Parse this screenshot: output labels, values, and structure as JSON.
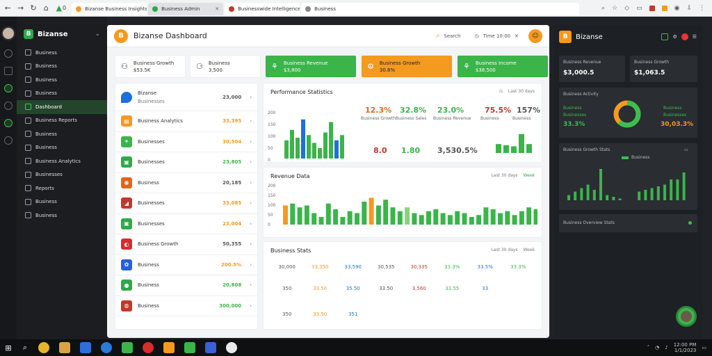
{
  "browser": {
    "tabs": [
      {
        "label": "Bizanse Business Insights",
        "dot": "#f39a1f",
        "active": false
      },
      {
        "label": "Business Admin",
        "dot": "#2fa84a",
        "active": true
      },
      {
        "label": "Businesswide Intelligence",
        "dot": "#c0392b",
        "active": false
      },
      {
        "label": "Business",
        "dot": "#888888",
        "active": false
      }
    ],
    "tab_indicator": "0"
  },
  "sidebar": {
    "brand": "Bizanse",
    "items": [
      {
        "label": "Business"
      },
      {
        "label": "Business"
      },
      {
        "label": "Business"
      },
      {
        "label": "Business"
      },
      {
        "label": "Dashboard"
      },
      {
        "label": "Business Reports"
      },
      {
        "label": "Business"
      },
      {
        "label": "Business"
      },
      {
        "label": "Business Analytics"
      },
      {
        "label": "Businesses"
      },
      {
        "label": "Reports"
      },
      {
        "label": "Business"
      },
      {
        "label": "Business"
      }
    ],
    "active_index": 4
  },
  "header": {
    "title": "Bizanse Dashboard",
    "search_label": "Search",
    "time_label": "Time 10:00"
  },
  "kpis": [
    {
      "l1": "Business Growth",
      "l2": "$53.5K",
      "style": "plain"
    },
    {
      "l1": "Business",
      "l2": "3,500",
      "style": "plain"
    },
    {
      "l1": "Business Revenue",
      "l2": "$3,800",
      "style": "green"
    },
    {
      "l1": "Business Growth",
      "l2": "30.8%",
      "style": "orange"
    },
    {
      "l1": "Business Income",
      "l2": "$38,500",
      "style": "green"
    }
  ],
  "list": {
    "first": {
      "name": "Bizanse",
      "sub": "Businesses",
      "value": "23,000"
    },
    "rows": [
      {
        "name": "Business Analytics",
        "value": "33,395",
        "color": "#f39a1f",
        "icon_bg": "#f39a1f"
      },
      {
        "name": "Businesses",
        "value": "30,504",
        "color": "#f39a1f",
        "icon_bg": "#3bb44a"
      },
      {
        "name": "Businesses",
        "value": "23,805",
        "color": "#3bb44a",
        "icon_bg": "#2fa84a"
      },
      {
        "name": "Business",
        "value": "20,185",
        "color": "#555555",
        "icon_bg": "#e0641c"
      },
      {
        "name": "Businesses",
        "value": "33,085",
        "color": "#f39a1f",
        "icon_bg": "#c0392b"
      },
      {
        "name": "Businesses",
        "value": "23,004",
        "color": "#f39a1f",
        "icon_bg": "#2fa84a"
      },
      {
        "name": "Business Growth",
        "value": "50,355",
        "color": "#555555",
        "icon_bg": "#d92c2c"
      },
      {
        "name": "Business",
        "value": "200.5%",
        "color": "#f39a1f",
        "icon_bg": "#2b5fd9"
      },
      {
        "name": "Business",
        "value": "20,808",
        "color": "#3bb44a",
        "icon_bg": "#2fa84a"
      },
      {
        "name": "Business",
        "value": "300,000",
        "color": "#3bb44a",
        "icon_bg": "#c0392b"
      }
    ]
  },
  "perf": {
    "title": "Performance Statistics",
    "tools": "Last 30 days",
    "metrics": [
      {
        "value": "12.3%",
        "label": "Business Growth",
        "color": "#e06a1c"
      },
      {
        "value": "32.8%",
        "label": "Business Sales",
        "color": "#3bb44a"
      },
      {
        "value": "23.0%",
        "label": "Business Revenue",
        "color": "#3bb44a"
      },
      {
        "value": "75.5%",
        "label": "Business",
        "color": "#c0392b"
      },
      {
        "value": "157%",
        "label": "Business",
        "color": "#555555"
      }
    ],
    "bottom_vals": [
      {
        "value": "8.0",
        "color": "#c0392b"
      },
      {
        "value": "1.80",
        "color": "#3bb44a"
      },
      {
        "value": "3,530.5%",
        "color": "#555555"
      }
    ],
    "y_ticks": [
      "200",
      "150",
      "100",
      "50",
      "0"
    ]
  },
  "rev": {
    "title": "Revenue Data",
    "tools": "Last 30 days",
    "tools_green": "Week",
    "y_ticks": [
      "200",
      "150",
      "100",
      "50",
      "0"
    ]
  },
  "table": {
    "title": "Business Stats",
    "tools": "Last 30 days",
    "tools2": "Week",
    "rows": [
      [
        "30,000",
        "33,350",
        "33,590",
        "30,535",
        "30,335",
        "33.3%",
        "33.5%",
        "33.3%"
      ],
      [
        "350",
        "33.50",
        "35.50",
        "33.50",
        "3,560",
        "33.55",
        "33",
        ""
      ],
      [
        "350",
        "33.50",
        "351",
        "",
        "",
        "",
        "",
        ""
      ]
    ]
  },
  "right": {
    "title": "Bizanse",
    "top_cards": [
      {
        "title": "Business Revenue",
        "value": "$3,000.5"
      },
      {
        "title": "Business Growth",
        "value": "$1,063.5"
      }
    ],
    "donut": {
      "title": "Business Activity",
      "left_l1": "Business",
      "left_l2": "Businesses",
      "left_val": "33.3%",
      "right_l1": "Business",
      "right_l2": "Businesses",
      "right_val": "30,03.3%",
      "share": 0.62
    },
    "bars_card": {
      "title": "Business Growth Stats",
      "legend": "Business"
    },
    "footer": {
      "title": "Business Overview Stats"
    }
  },
  "taskbar": {
    "time": "12:00 PM",
    "date": "1/1/2023"
  }
}
